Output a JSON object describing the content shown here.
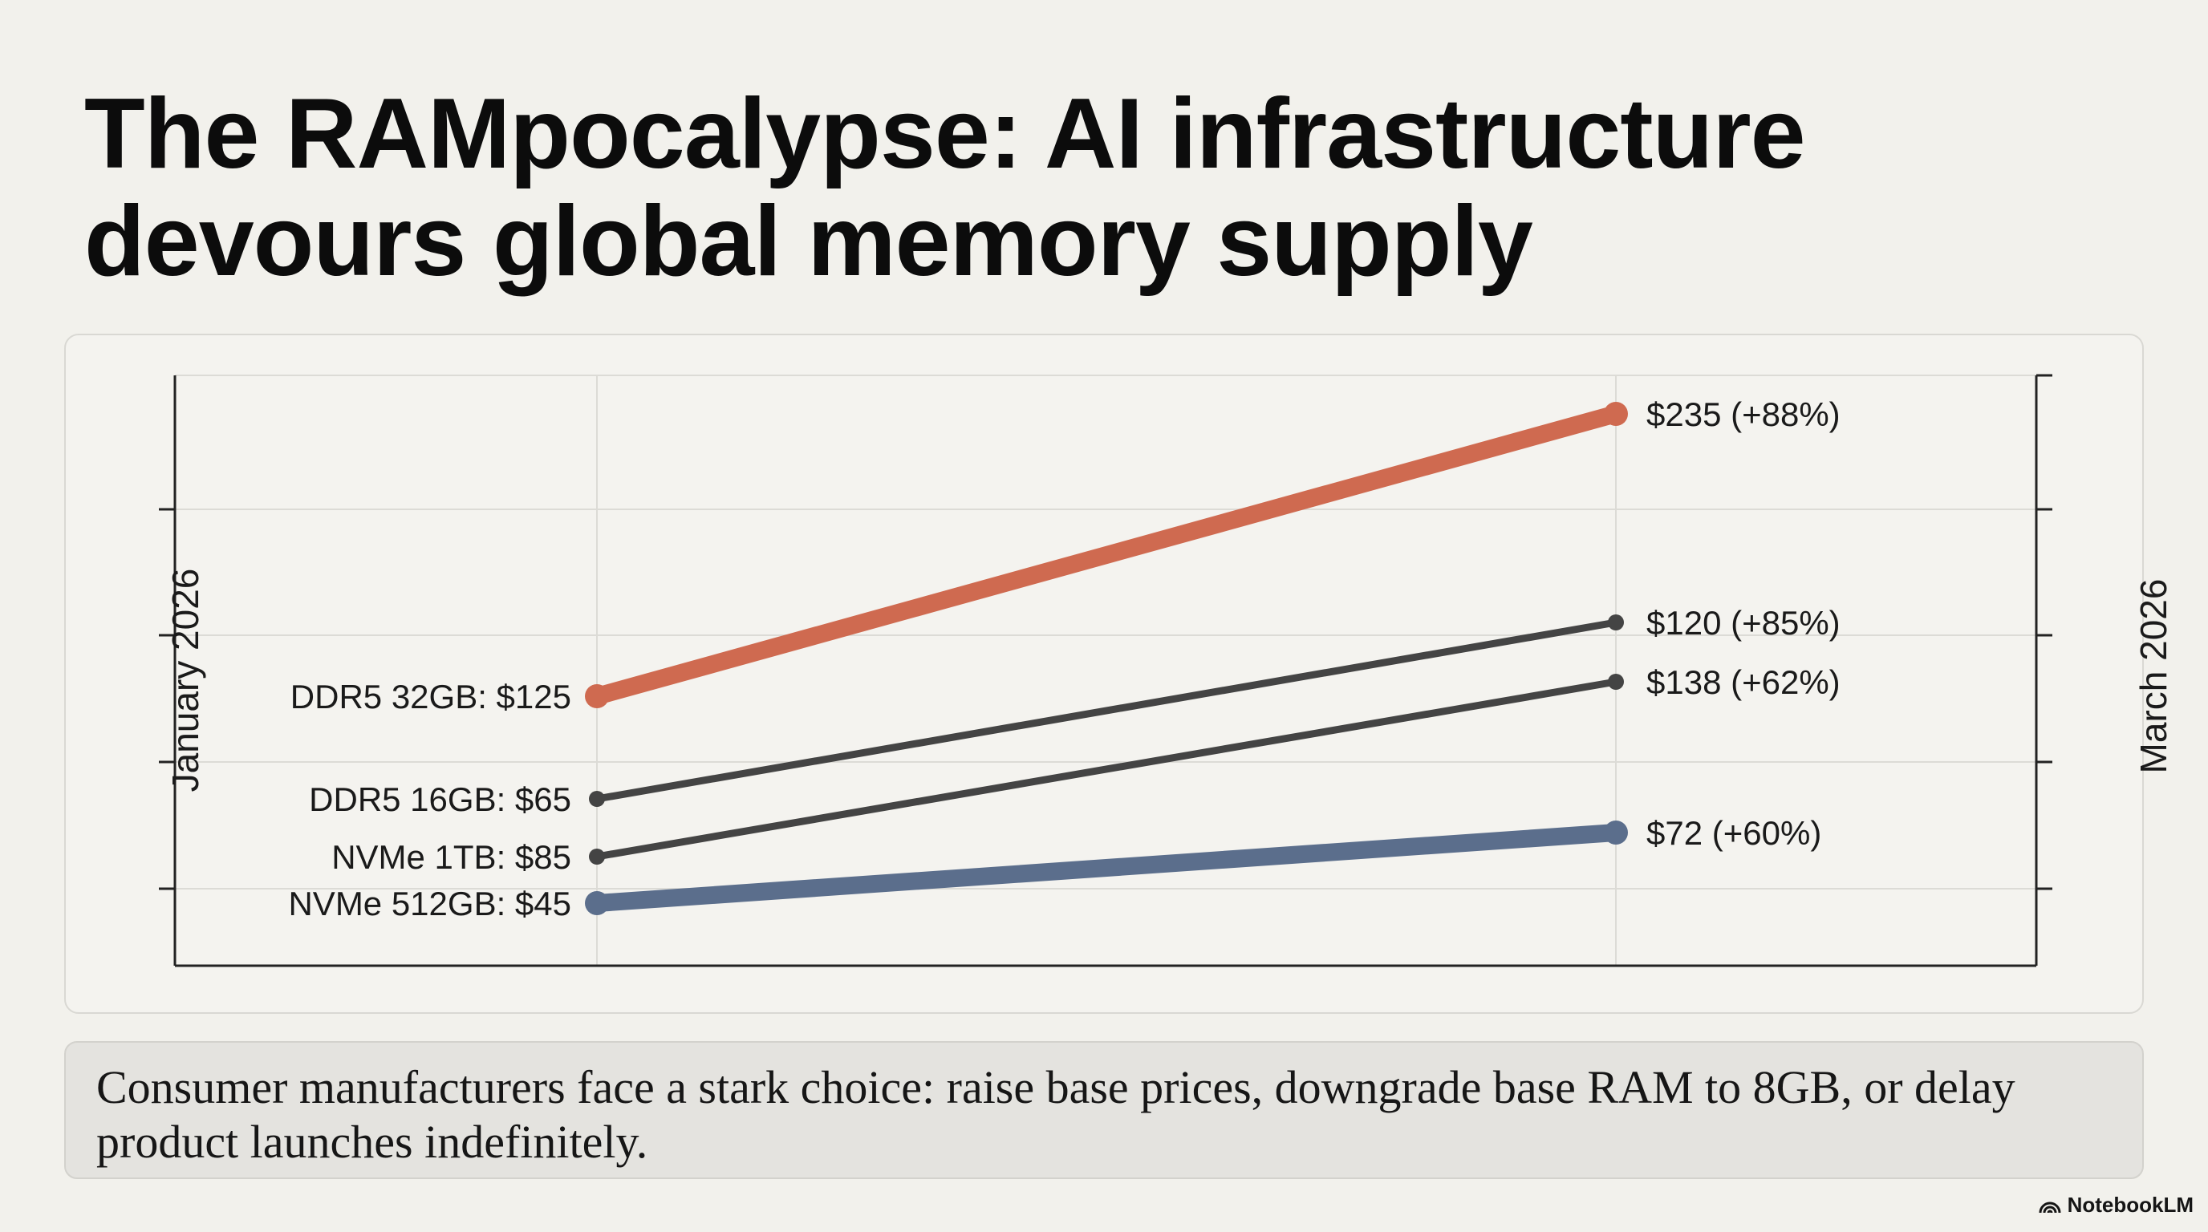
{
  "title": {
    "line1": "The RAMpocalypse: AI infrastructure",
    "line2": "devours global memory supply"
  },
  "chart_data": {
    "type": "line",
    "x": [
      "January 2026",
      "March 2026"
    ],
    "left_axis_label": "January 2026",
    "right_axis_label": "March 2026",
    "grid": true,
    "series": [
      {
        "start_label": "DDR5 32GB: $125",
        "end_label": "$235 (+88%)",
        "values": [
          125,
          235
        ],
        "color": "#cf6a50",
        "emphasis": true
      },
      {
        "start_label": "DDR5 16GB: $65",
        "end_label": "$120 (+85%)",
        "values": [
          65,
          120
        ],
        "color": "#444444",
        "emphasis": false
      },
      {
        "start_label": "NVMe 1TB: $85",
        "end_label": "$138 (+62%)",
        "values": [
          85,
          138
        ],
        "color": "#444444",
        "emphasis": false
      },
      {
        "start_label": "NVMe 512GB: $45",
        "end_label": "$72 (+60%)",
        "values": [
          45,
          72
        ],
        "color": "#5b6e8c",
        "emphasis": true
      }
    ]
  },
  "caption": "Consumer manufacturers face a stark choice: raise base prices, downgrade base RAM to 8GB, or delay product launches indefinitely.",
  "brand": {
    "name": "NotebookLM",
    "icon": "notebooklm-logo-icon"
  }
}
